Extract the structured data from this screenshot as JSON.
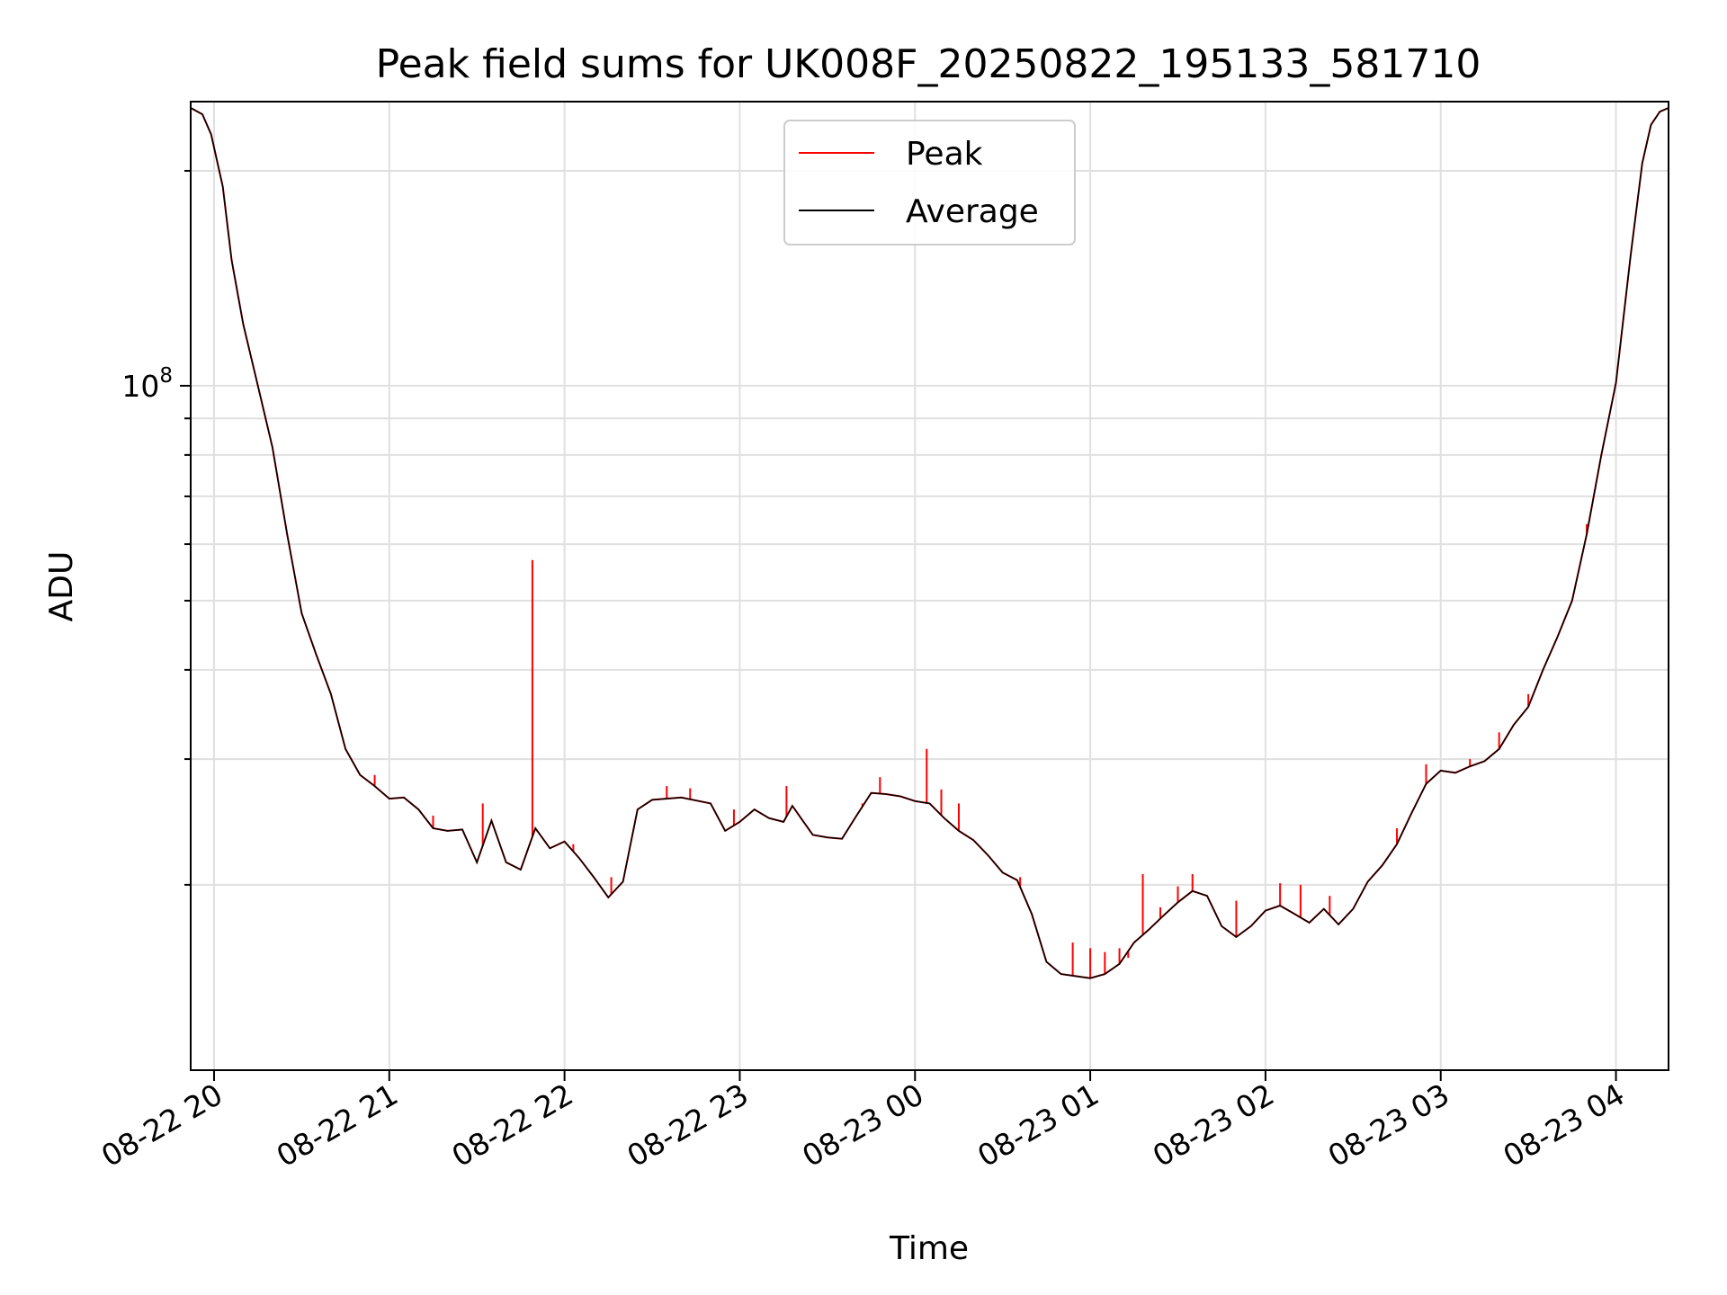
{
  "chart_data": {
    "type": "line",
    "title": "Peak field sums for UK008F_20250822_195133_581710",
    "xlabel": "Time",
    "ylabel": "ADU",
    "yscale": "log",
    "grid": true,
    "xlim": [
      "2025-08-22T19:52",
      "2025-08-23T04:18"
    ],
    "ylim": [
      11000000,
      250000000
    ],
    "x_ticks": [
      {
        "t": "2025-08-22T20:00",
        "label": "08-22 20"
      },
      {
        "t": "2025-08-22T21:00",
        "label": "08-22 21"
      },
      {
        "t": "2025-08-22T22:00",
        "label": "08-22 22"
      },
      {
        "t": "2025-08-22T23:00",
        "label": "08-22 23"
      },
      {
        "t": "2025-08-23T00:00",
        "label": "08-23 00"
      },
      {
        "t": "2025-08-23T01:00",
        "label": "08-23 01"
      },
      {
        "t": "2025-08-23T02:00",
        "label": "08-23 02"
      },
      {
        "t": "2025-08-23T03:00",
        "label": "08-23 03"
      },
      {
        "t": "2025-08-23T04:00",
        "label": "08-23 04"
      }
    ],
    "y_major_ticks": [
      {
        "value": 100000000,
        "base": "10",
        "exp": "8"
      }
    ],
    "y_minor_ticks": [
      20000000,
      30000000,
      40000000,
      50000000,
      60000000,
      70000000,
      80000000,
      90000000,
      200000000
    ],
    "legend": {
      "location": "upper center"
    },
    "series": [
      {
        "name": "Average",
        "color": "#000000",
        "points": [
          [
            "2025-08-22T19:52",
            245000000
          ],
          [
            "2025-08-22T19:56",
            240000000
          ],
          [
            "2025-08-22T19:59",
            225000000
          ],
          [
            "2025-08-22T20:03",
            190000000
          ],
          [
            "2025-08-22T20:06",
            150000000
          ],
          [
            "2025-08-22T20:10",
            122000000
          ],
          [
            "2025-08-22T20:15",
            100000000
          ],
          [
            "2025-08-22T20:20",
            82000000
          ],
          [
            "2025-08-22T20:25",
            62000000
          ],
          [
            "2025-08-22T20:30",
            48000000
          ],
          [
            "2025-08-22T20:35",
            42000000
          ],
          [
            "2025-08-22T20:40",
            37000000
          ],
          [
            "2025-08-22T20:45",
            31000000
          ],
          [
            "2025-08-22T20:50",
            28500000
          ],
          [
            "2025-08-22T20:55",
            27500000
          ],
          [
            "2025-08-22T21:00",
            26400000
          ],
          [
            "2025-08-22T21:05",
            26500000
          ],
          [
            "2025-08-22T21:10",
            25500000
          ],
          [
            "2025-08-22T21:15",
            24000000
          ],
          [
            "2025-08-22T21:20",
            23800000
          ],
          [
            "2025-08-22T21:25",
            23900000
          ],
          [
            "2025-08-22T21:30",
            21500000
          ],
          [
            "2025-08-22T21:35",
            24600000
          ],
          [
            "2025-08-22T21:40",
            21500000
          ],
          [
            "2025-08-22T21:45",
            21000000
          ],
          [
            "2025-08-22T21:50",
            24000000
          ],
          [
            "2025-08-22T21:55",
            22500000
          ],
          [
            "2025-08-22T22:00",
            23000000
          ],
          [
            "2025-08-22T22:05",
            21800000
          ],
          [
            "2025-08-22T22:10",
            20500000
          ],
          [
            "2025-08-22T22:15",
            19200000
          ],
          [
            "2025-08-22T22:20",
            20200000
          ],
          [
            "2025-08-22T22:25",
            25500000
          ],
          [
            "2025-08-22T22:30",
            26300000
          ],
          [
            "2025-08-22T22:40",
            26500000
          ],
          [
            "2025-08-22T22:50",
            26000000
          ],
          [
            "2025-08-22T22:55",
            23800000
          ],
          [
            "2025-08-22T23:00",
            24500000
          ],
          [
            "2025-08-22T23:05",
            25500000
          ],
          [
            "2025-08-22T23:10",
            24800000
          ],
          [
            "2025-08-22T23:15",
            24500000
          ],
          [
            "2025-08-22T23:18",
            25800000
          ],
          [
            "2025-08-22T23:25",
            23500000
          ],
          [
            "2025-08-22T23:30",
            23300000
          ],
          [
            "2025-08-22T23:35",
            23200000
          ],
          [
            "2025-08-22T23:40",
            25000000
          ],
          [
            "2025-08-22T23:45",
            26900000
          ],
          [
            "2025-08-22T23:50",
            26800000
          ],
          [
            "2025-08-22T23:55",
            26600000
          ],
          [
            "2025-08-23T00:00",
            26200000
          ],
          [
            "2025-08-23T00:05",
            26000000
          ],
          [
            "2025-08-23T00:10",
            24800000
          ],
          [
            "2025-08-23T00:15",
            23800000
          ],
          [
            "2025-08-23T00:20",
            23100000
          ],
          [
            "2025-08-23T00:25",
            22000000
          ],
          [
            "2025-08-23T00:30",
            20800000
          ],
          [
            "2025-08-23T00:35",
            20300000
          ],
          [
            "2025-08-23T00:40",
            18200000
          ],
          [
            "2025-08-23T00:45",
            15600000
          ],
          [
            "2025-08-23T00:50",
            15000000
          ],
          [
            "2025-08-23T00:55",
            14900000
          ],
          [
            "2025-08-23T01:00",
            14800000
          ],
          [
            "2025-08-23T01:05",
            15000000
          ],
          [
            "2025-08-23T01:10",
            15500000
          ],
          [
            "2025-08-23T01:15",
            16600000
          ],
          [
            "2025-08-23T01:20",
            17300000
          ],
          [
            "2025-08-23T01:25",
            18100000
          ],
          [
            "2025-08-23T01:30",
            18900000
          ],
          [
            "2025-08-23T01:35",
            19600000
          ],
          [
            "2025-08-23T01:40",
            19300000
          ],
          [
            "2025-08-23T01:45",
            17500000
          ],
          [
            "2025-08-23T01:50",
            16900000
          ],
          [
            "2025-08-23T01:55",
            17500000
          ],
          [
            "2025-08-23T02:00",
            18400000
          ],
          [
            "2025-08-23T02:05",
            18700000
          ],
          [
            "2025-08-23T02:10",
            18200000
          ],
          [
            "2025-08-23T02:15",
            17700000
          ],
          [
            "2025-08-23T02:20",
            18500000
          ],
          [
            "2025-08-23T02:25",
            17600000
          ],
          [
            "2025-08-23T02:30",
            18500000
          ],
          [
            "2025-08-23T02:35",
            20200000
          ],
          [
            "2025-08-23T02:40",
            21300000
          ],
          [
            "2025-08-23T02:45",
            22800000
          ],
          [
            "2025-08-23T02:50",
            25200000
          ],
          [
            "2025-08-23T02:55",
            27700000
          ],
          [
            "2025-08-23T03:00",
            28900000
          ],
          [
            "2025-08-23T03:05",
            28700000
          ],
          [
            "2025-08-23T03:10",
            29300000
          ],
          [
            "2025-08-23T03:15",
            29800000
          ],
          [
            "2025-08-23T03:20",
            31000000
          ],
          [
            "2025-08-23T03:25",
            33500000
          ],
          [
            "2025-08-23T03:30",
            35500000
          ],
          [
            "2025-08-23T03:35",
            40000000
          ],
          [
            "2025-08-23T03:40",
            44500000
          ],
          [
            "2025-08-23T03:45",
            50000000
          ],
          [
            "2025-08-23T03:50",
            62000000
          ],
          [
            "2025-08-23T03:55",
            80000000
          ],
          [
            "2025-08-23T04:00",
            101000000
          ],
          [
            "2025-08-23T04:05",
            152000000
          ],
          [
            "2025-08-23T04:09",
            205000000
          ],
          [
            "2025-08-23T04:12",
            232000000
          ],
          [
            "2025-08-23T04:15",
            242000000
          ],
          [
            "2025-08-23T04:18",
            245000000
          ]
        ]
      },
      {
        "name": "Peak",
        "color": "#ff0000",
        "spikes": [
          [
            "2025-08-22T20:55",
            28500000
          ],
          [
            "2025-08-22T21:15",
            25000000
          ],
          [
            "2025-08-22T21:32",
            26000000
          ],
          [
            "2025-08-22T21:49",
            57000000
          ],
          [
            "2025-08-22T22:03",
            22800000
          ],
          [
            "2025-08-22T22:16",
            20500000
          ],
          [
            "2025-08-22T22:35",
            27500000
          ],
          [
            "2025-08-22T22:43",
            27300000
          ],
          [
            "2025-08-22T22:58",
            25500000
          ],
          [
            "2025-08-22T23:16",
            27500000
          ],
          [
            "2025-08-22T23:42",
            26000000
          ],
          [
            "2025-08-22T23:48",
            28300000
          ],
          [
            "2025-08-23T00:04",
            31000000
          ],
          [
            "2025-08-23T00:09",
            27200000
          ],
          [
            "2025-08-23T00:15",
            26000000
          ],
          [
            "2025-08-23T00:36",
            20500000
          ],
          [
            "2025-08-23T00:54",
            16600000
          ],
          [
            "2025-08-23T01:00",
            16300000
          ],
          [
            "2025-08-23T01:05",
            16100000
          ],
          [
            "2025-08-23T01:10",
            16300000
          ],
          [
            "2025-08-23T01:13",
            15800000
          ],
          [
            "2025-08-23T01:18",
            20700000
          ],
          [
            "2025-08-23T01:24",
            18600000
          ],
          [
            "2025-08-23T01:30",
            19900000
          ],
          [
            "2025-08-23T01:35",
            20700000
          ],
          [
            "2025-08-23T01:50",
            19000000
          ],
          [
            "2025-08-23T02:05",
            20100000
          ],
          [
            "2025-08-23T02:12",
            20000000
          ],
          [
            "2025-08-23T02:22",
            19300000
          ],
          [
            "2025-08-23T02:45",
            24000000
          ],
          [
            "2025-08-23T02:55",
            29500000
          ],
          [
            "2025-08-23T03:10",
            30000000
          ],
          [
            "2025-08-23T03:20",
            32700000
          ],
          [
            "2025-08-23T03:30",
            37000000
          ],
          [
            "2025-08-23T03:50",
            64000000
          ]
        ]
      }
    ]
  }
}
